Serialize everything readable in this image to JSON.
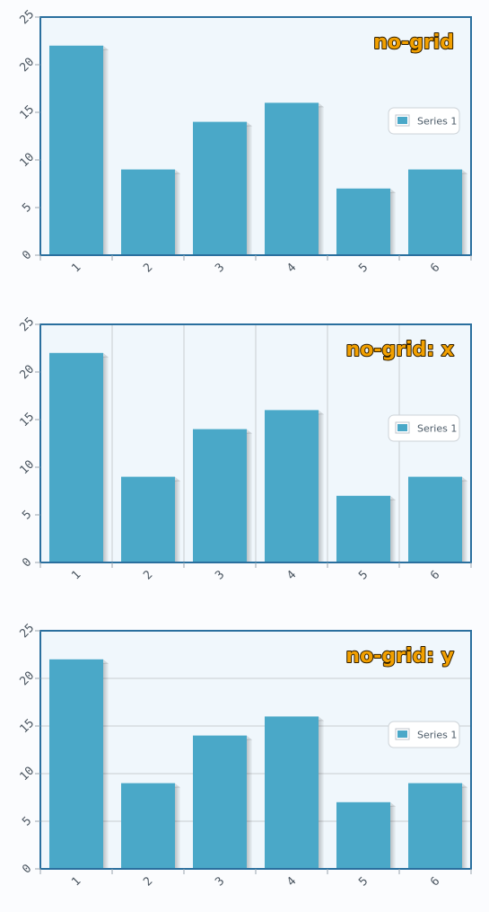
{
  "chart_data": [
    {
      "type": "bar",
      "title": "no-grid",
      "grid": "none",
      "categories": [
        "1",
        "2",
        "3",
        "4",
        "5",
        "6"
      ],
      "series": [
        {
          "name": "Series 1",
          "values": [
            22,
            9,
            14,
            16,
            7,
            9
          ]
        }
      ],
      "ylim": [
        0,
        25
      ],
      "yticks": [
        0,
        5,
        10,
        15,
        20,
        25
      ],
      "legend": "right",
      "colors": {
        "bar": "#4aa8c8",
        "axis": "#2a6f9e",
        "plot_bg": "#f0f7fc",
        "grid": "#c8ccd0"
      }
    },
    {
      "type": "bar",
      "title": "no-grid: x",
      "grid": "vertical",
      "categories": [
        "1",
        "2",
        "3",
        "4",
        "5",
        "6"
      ],
      "series": [
        {
          "name": "Series 1",
          "values": [
            22,
            9,
            14,
            16,
            7,
            9
          ]
        }
      ],
      "ylim": [
        0,
        25
      ],
      "yticks": [
        0,
        5,
        10,
        15,
        20,
        25
      ],
      "legend": "right",
      "colors": {
        "bar": "#4aa8c8",
        "axis": "#2a6f9e",
        "plot_bg": "#f0f7fc",
        "grid": "#c8ccd0"
      }
    },
    {
      "type": "bar",
      "title": "no-grid: y",
      "grid": "horizontal",
      "categories": [
        "1",
        "2",
        "3",
        "4",
        "5",
        "6"
      ],
      "series": [
        {
          "name": "Series 1",
          "values": [
            22,
            9,
            14,
            16,
            7,
            9
          ]
        }
      ],
      "ylim": [
        0,
        25
      ],
      "yticks": [
        0,
        5,
        10,
        15,
        20,
        25
      ],
      "legend": "right",
      "colors": {
        "bar": "#4aa8c8",
        "axis": "#2a6f9e",
        "plot_bg": "#f0f7fc",
        "grid": "#c8ccd0"
      }
    }
  ]
}
